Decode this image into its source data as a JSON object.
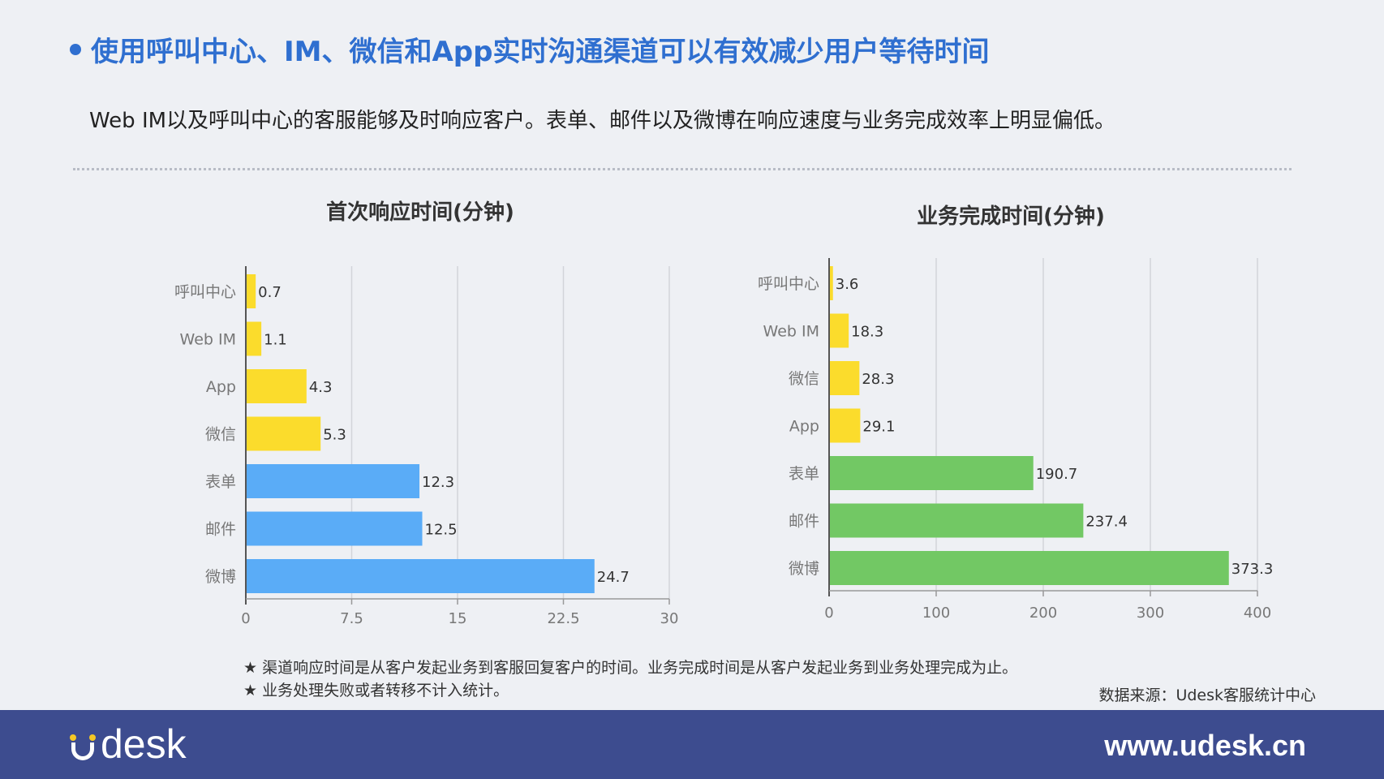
{
  "header": {
    "title": "使用呼叫中心、IM、微信和App实时沟通渠道可以有效减少用户等待时间",
    "subtitle": "Web IM以及呼叫中心的客服能够及时响应客户。表单、邮件以及微博在响应速度与业务完成效率上明显偏低。"
  },
  "chart_data": [
    {
      "type": "bar",
      "orientation": "horizontal",
      "title": "首次响应时间(分钟)",
      "categories": [
        "呼叫中心",
        "Web IM",
        "App",
        "微信",
        "表单",
        "邮件",
        "微博"
      ],
      "values": [
        0.7,
        1.1,
        4.3,
        5.3,
        12.3,
        12.5,
        24.7
      ],
      "value_labels": [
        "0.7",
        "1.1",
        "4.3",
        "5.3",
        "12.3",
        "12.5",
        "24.7"
      ],
      "colors": [
        "#fbdc2c",
        "#fbdc2c",
        "#fbdc2c",
        "#fbdc2c",
        "#5aacf7",
        "#5aacf7",
        "#5aacf7"
      ],
      "xlim": [
        0,
        30
      ],
      "ticks": [
        0,
        7.5,
        15,
        22.5,
        30
      ],
      "tick_labels": [
        "0",
        "7.5",
        "15",
        "22.5",
        "30"
      ],
      "grid": "vertical"
    },
    {
      "type": "bar",
      "orientation": "horizontal",
      "title": "业务完成时间(分钟)",
      "categories": [
        "呼叫中心",
        "Web IM",
        "微信",
        "App",
        "表单",
        "邮件",
        "微博"
      ],
      "values": [
        3.6,
        18.3,
        28.3,
        29.1,
        190.7,
        237.4,
        373.3
      ],
      "value_labels": [
        "3.6",
        "18.3",
        "28.3",
        "29.1",
        "190.7",
        "237.4",
        "373.3"
      ],
      "colors": [
        "#fbdc2c",
        "#fbdc2c",
        "#fbdc2c",
        "#fbdc2c",
        "#72c864",
        "#72c864",
        "#72c864"
      ],
      "xlim": [
        0,
        400
      ],
      "ticks": [
        0,
        100,
        200,
        300,
        400
      ],
      "tick_labels": [
        "0",
        "100",
        "200",
        "300",
        "400"
      ],
      "grid": "vertical"
    }
  ],
  "notes": [
    "渠道响应时间是从客户发起业务到客服回复客户的时间。业务完成时间是从客户发起业务到业务处理完成为止。",
    "业务处理失败或者转移不计入统计。"
  ],
  "note_marker": "★",
  "source": "数据来源：Udesk客服统计中心",
  "footer": {
    "logo_text": "desk",
    "url": "www.udesk.cn"
  },
  "colors": {
    "title_blue": "#2f6fd0",
    "footer_bg": "#3d4c8f",
    "logo_yellow": "#f5c825"
  }
}
